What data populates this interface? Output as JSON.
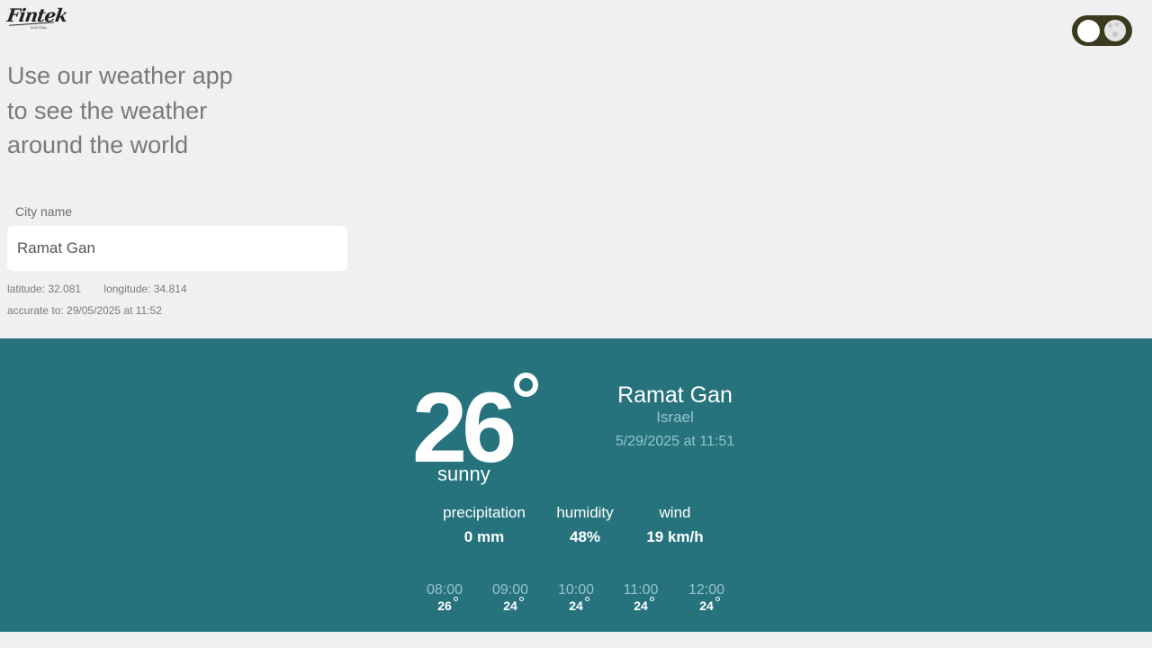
{
  "brand": {
    "logo_text": "Fintek",
    "logo_sub": "DIGITAL"
  },
  "header": {
    "headline_lines": [
      "Use our weather app",
      "to see the weather",
      "around the world"
    ]
  },
  "search": {
    "label": "City name",
    "value": "Ramat Gan"
  },
  "coordinates": {
    "latitude": "latitude: 32.081",
    "longitude": "longitude: 34.814",
    "accurate_to": "accurate to: 29/05/2025 at 11:52"
  },
  "weather": {
    "temperature": "26",
    "condition": "sunny",
    "city": "Ramat Gan",
    "country": "Israel",
    "datetime": "5/29/2025 at 11:51",
    "stats": [
      {
        "label": "precipitation",
        "value": "0 mm"
      },
      {
        "label": "humidity",
        "value": "48%"
      },
      {
        "label": "wind",
        "value": "19 km/h"
      }
    ],
    "hourly": [
      {
        "time": "08:00",
        "temp": "26"
      },
      {
        "time": "09:00",
        "temp": "24"
      },
      {
        "time": "10:00",
        "temp": "24"
      },
      {
        "time": "11:00",
        "temp": "24"
      },
      {
        "time": "12:00",
        "temp": "24"
      }
    ]
  },
  "colors": {
    "panel_bg": "#26737e",
    "toggle_bg": "#3b3a1f",
    "page_bg": "#f0f0f0"
  },
  "icons": [
    "sun-icon",
    "moon-icon",
    "degree-icon"
  ]
}
